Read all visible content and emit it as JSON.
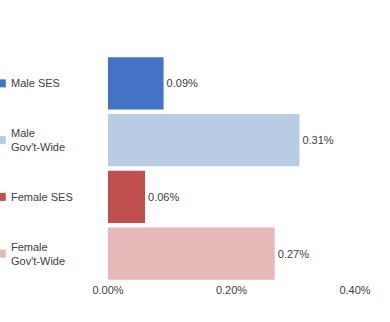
{
  "chart_data": {
    "type": "bar",
    "orientation": "horizontal",
    "categories": [
      "Male SES",
      "Male Gov't-Wide",
      "Female SES",
      "Female Gov't-Wide"
    ],
    "values": [
      0.09,
      0.31,
      0.06,
      0.27
    ],
    "value_labels": [
      "0.09%",
      "0.31%",
      "0.06%",
      "0.27%"
    ],
    "colors": [
      "#4472c4",
      "#b8cce4",
      "#c0504d",
      "#e6b9b8"
    ],
    "xlim": [
      0,
      0.4
    ],
    "xticks": [
      {
        "value": 0,
        "label": "0.00%"
      },
      {
        "value": 0.2,
        "label": "0.20%"
      },
      {
        "value": 0.4,
        "label": "0.40%"
      }
    ],
    "grid": false,
    "data_labels": true
  }
}
